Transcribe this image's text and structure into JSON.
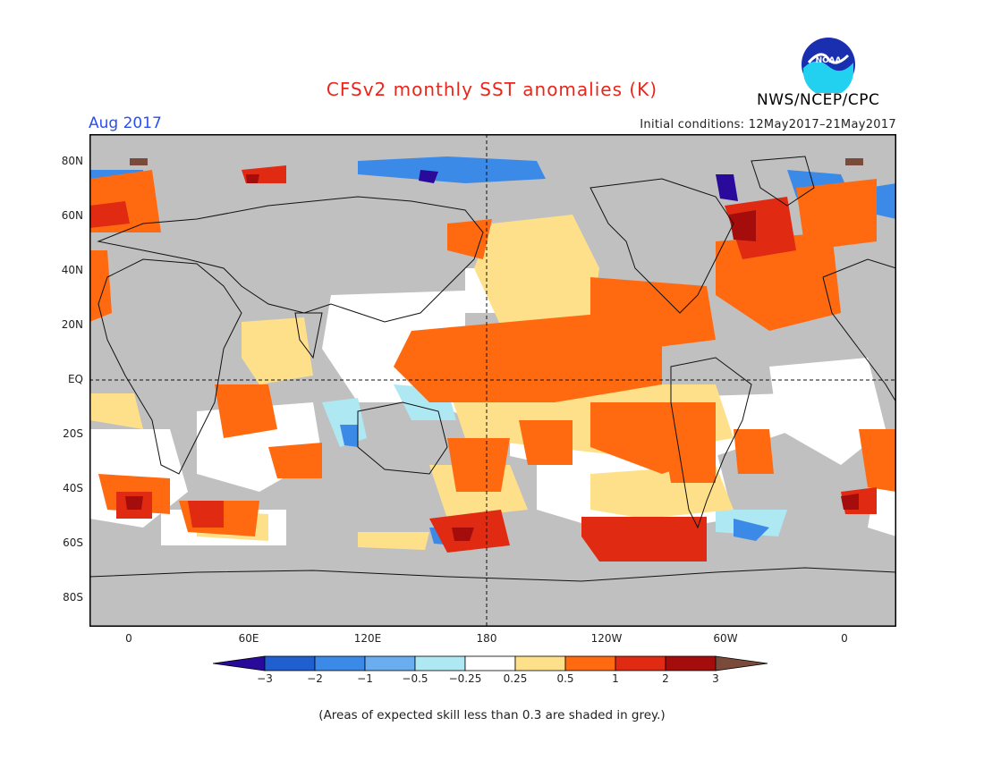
{
  "title": "CFSv2 monthly SST anomalies (K)",
  "valid_month": "Aug 2017",
  "initial_conditions": "Initial conditions: 12May2017–21May2017",
  "agency": "NWS/NCEP/CPC",
  "logo_text": "NOAA",
  "footnote": "(Areas of expected skill less than 0.3 are shaded in grey.)",
  "map": {
    "lat_labels": [
      "80N",
      "60N",
      "40N",
      "20N",
      "EQ",
      "20S",
      "40S",
      "60S",
      "80S"
    ],
    "lon_labels": [
      "0",
      "60E",
      "120E",
      "180",
      "120W",
      "60W",
      "0"
    ],
    "low_skill_color": "#c0c0c0"
  },
  "colorbar": {
    "labels": [
      "−3",
      "−2",
      "−1",
      "−0.5",
      "−0.25",
      "0.25",
      "0.5",
      "1",
      "2",
      "3"
    ],
    "colors": [
      "#2a0a9a",
      "#1f5fcf",
      "#3c8ae8",
      "#6aaef0",
      "#aee8f2",
      "#ffffff",
      "#ffe08a",
      "#ff6a10",
      "#e02a12",
      "#a50d0d",
      "#7a4a3a"
    ]
  }
}
